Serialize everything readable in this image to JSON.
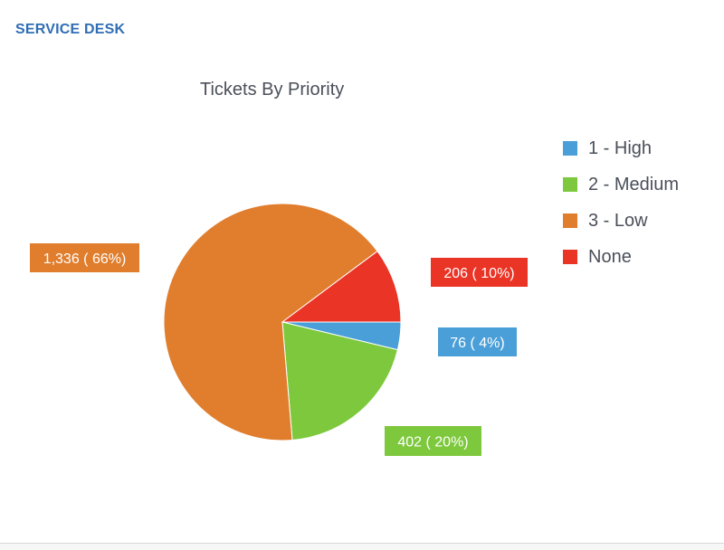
{
  "header": {
    "title": "SERVICE DESK"
  },
  "chart_data": {
    "type": "pie",
    "title": "Tickets By Priority",
    "legend_position": "right",
    "series": [
      {
        "name": "1 - High",
        "value": 76,
        "label": "76 ( 4%)",
        "color": "#4a9fd8"
      },
      {
        "name": "2 - Medium",
        "value": 402,
        "label": "402 ( 20%)",
        "color": "#7dc83c"
      },
      {
        "name": "3 - Low",
        "value": 1336,
        "label": "1,336 ( 66%)",
        "color": "#e07e2e"
      },
      {
        "name": "None",
        "value": 206,
        "label": "206 ( 10%)",
        "color": "#ea3425"
      }
    ]
  }
}
